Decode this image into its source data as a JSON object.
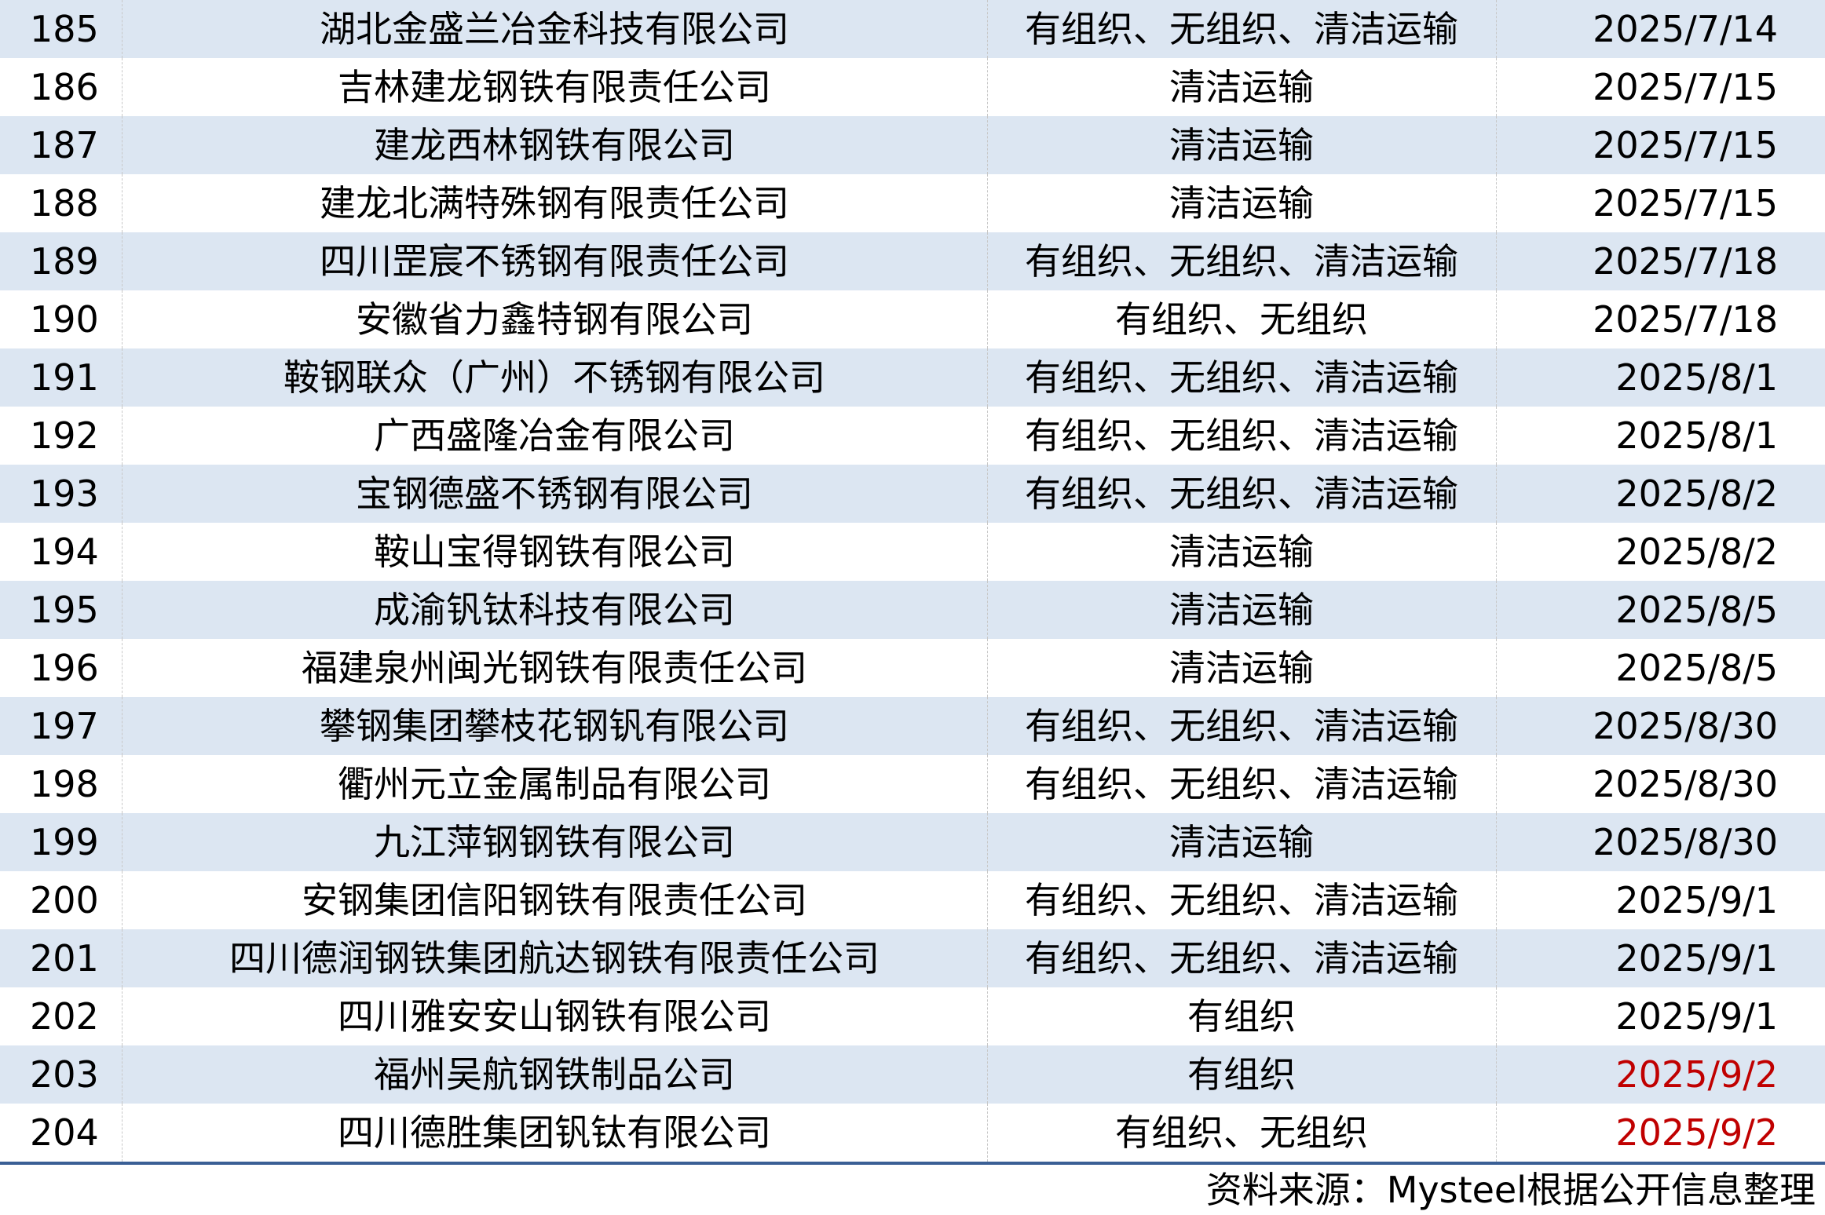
{
  "table": {
    "rows": [
      {
        "no": "185",
        "company": "湖北金盛兰冶金科技有限公司",
        "type": "有组织、无组织、清洁运输",
        "date": "2025/7/14",
        "highlight": false
      },
      {
        "no": "186",
        "company": "吉林建龙钢铁有限责任公司",
        "type": "清洁运输",
        "date": "2025/7/15",
        "highlight": false
      },
      {
        "no": "187",
        "company": "建龙西林钢铁有限公司",
        "type": "清洁运输",
        "date": "2025/7/15",
        "highlight": false
      },
      {
        "no": "188",
        "company": "建龙北满特殊钢有限责任公司",
        "type": "清洁运输",
        "date": "2025/7/15",
        "highlight": false
      },
      {
        "no": "189",
        "company": "四川罡宸不锈钢有限责任公司",
        "type": "有组织、无组织、清洁运输",
        "date": "2025/7/18",
        "highlight": false
      },
      {
        "no": "190",
        "company": "安徽省力鑫特钢有限公司",
        "type": "有组织、无组织",
        "date": "2025/7/18",
        "highlight": false
      },
      {
        "no": "191",
        "company": "鞍钢联众（广州）不锈钢有限公司",
        "type": "有组织、无组织、清洁运输",
        "date": "2025/8/1",
        "highlight": false
      },
      {
        "no": "192",
        "company": "广西盛隆冶金有限公司",
        "type": "有组织、无组织、清洁运输",
        "date": "2025/8/1",
        "highlight": false
      },
      {
        "no": "193",
        "company": "宝钢德盛不锈钢有限公司",
        "type": "有组织、无组织、清洁运输",
        "date": "2025/8/2",
        "highlight": false
      },
      {
        "no": "194",
        "company": "鞍山宝得钢铁有限公司",
        "type": "清洁运输",
        "date": "2025/8/2",
        "highlight": false
      },
      {
        "no": "195",
        "company": "成渝钒钛科技有限公司",
        "type": "清洁运输",
        "date": "2025/8/5",
        "highlight": false
      },
      {
        "no": "196",
        "company": "福建泉州闽光钢铁有限责任公司",
        "type": "清洁运输",
        "date": "2025/8/5",
        "highlight": false
      },
      {
        "no": "197",
        "company": "攀钢集团攀枝花钢钒有限公司",
        "type": "有组织、无组织、清洁运输",
        "date": "2025/8/30",
        "highlight": false
      },
      {
        "no": "198",
        "company": "衢州元立金属制品有限公司",
        "type": "有组织、无组织、清洁运输",
        "date": "2025/8/30",
        "highlight": false
      },
      {
        "no": "199",
        "company": "九江萍钢钢铁有限公司",
        "type": "清洁运输",
        "date": "2025/8/30",
        "highlight": false
      },
      {
        "no": "200",
        "company": "安钢集团信阳钢铁有限责任公司",
        "type": "有组织、无组织、清洁运输",
        "date": "2025/9/1",
        "highlight": false
      },
      {
        "no": "201",
        "company": "四川德润钢铁集团航达钢铁有限责任公司",
        "type": "有组织、无组织、清洁运输",
        "date": "2025/9/1",
        "highlight": false
      },
      {
        "no": "202",
        "company": "四川雅安安山钢铁有限公司",
        "type": "有组织",
        "date": "2025/9/1",
        "highlight": false
      },
      {
        "no": "203",
        "company": "福州吴航钢铁制品公司",
        "type": "有组织",
        "date": "2025/9/2",
        "highlight": true
      },
      {
        "no": "204",
        "company": "四川德胜集团钒钛有限公司",
        "type": "有组织、无组织",
        "date": "2025/9/2",
        "highlight": true
      }
    ]
  },
  "source": "资料来源：Mysteel根据公开信息整理",
  "colors": {
    "stripe": "#dce6f2",
    "highlight_date": "#c00000",
    "bottom_rule": "#3a5f95"
  }
}
